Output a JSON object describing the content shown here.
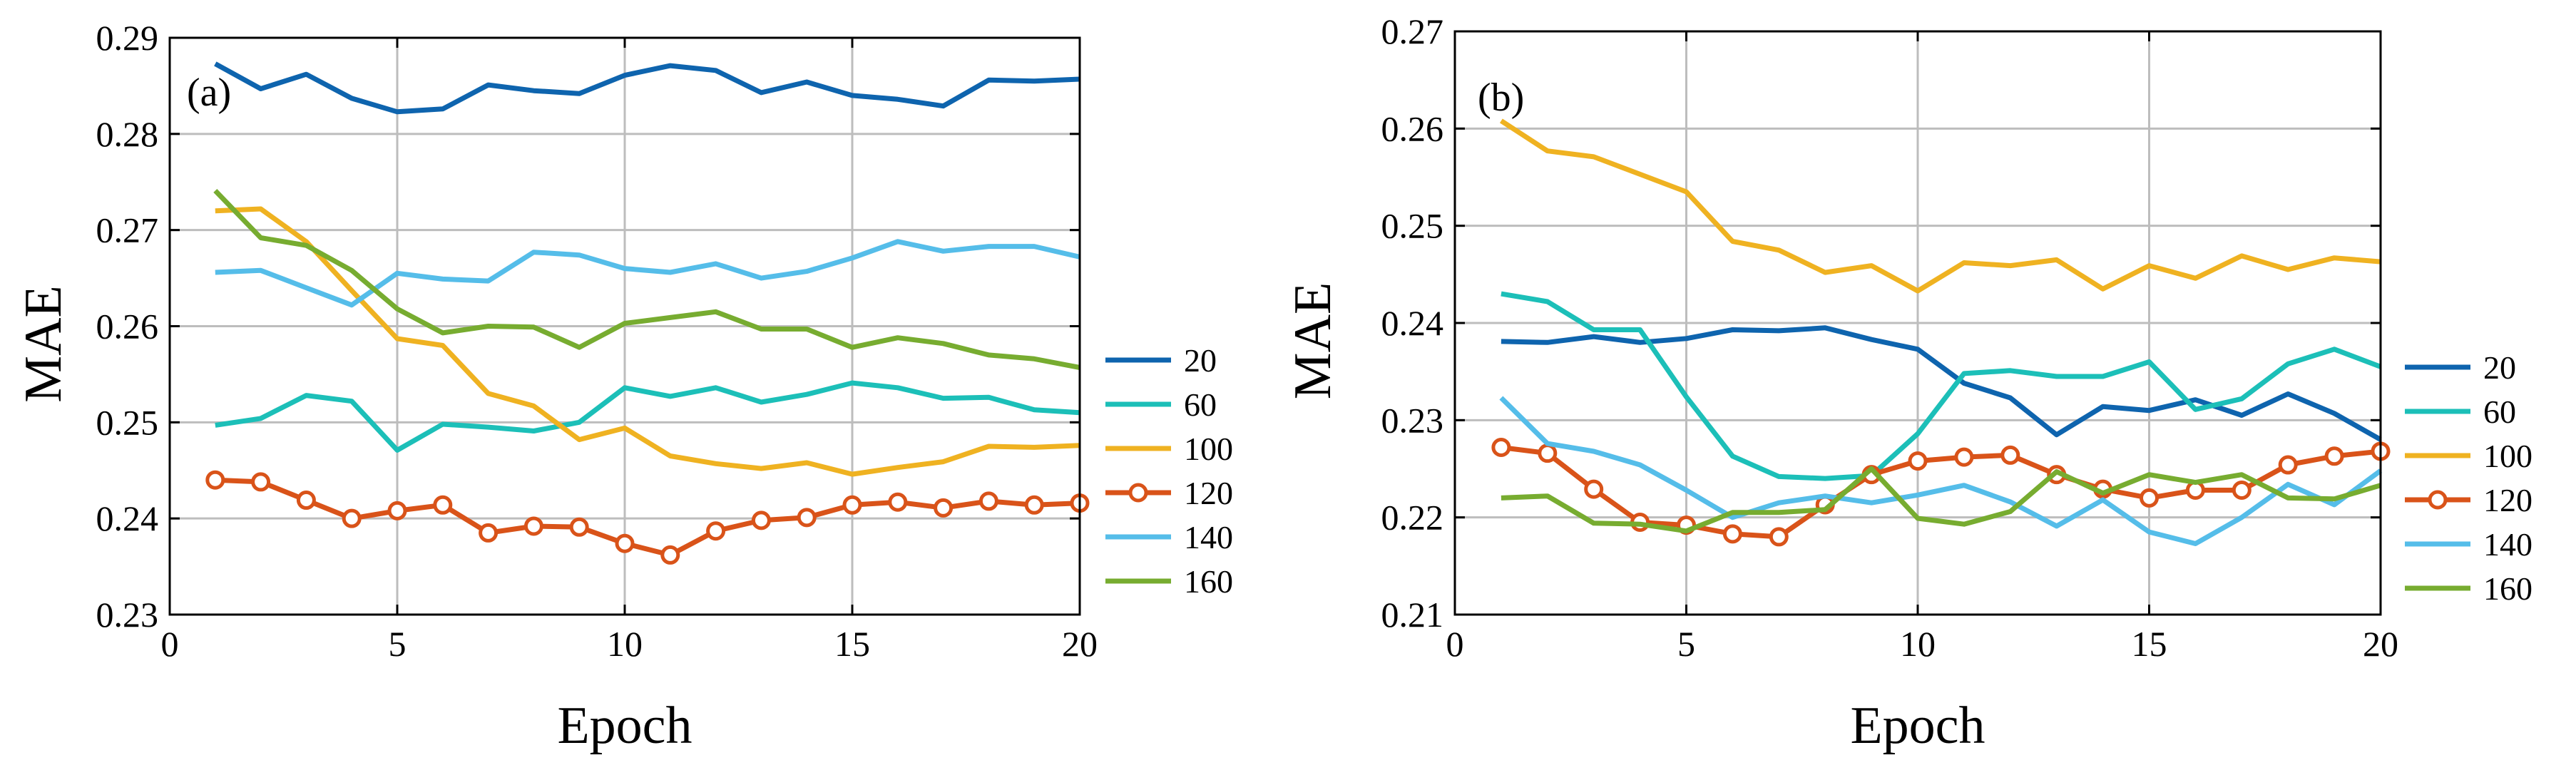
{
  "chart_data": [
    {
      "type": "line",
      "panel_label": "(a)",
      "xlabel": "Epoch",
      "ylabel": "MAE",
      "xlim": [
        0,
        20
      ],
      "ylim": [
        0.23,
        0.29
      ],
      "xticks": [
        0,
        5,
        10,
        15,
        20
      ],
      "xtick_labels": [
        "0",
        "5",
        "10",
        "15",
        "20"
      ],
      "yticks": [
        0.23,
        0.24,
        0.25,
        0.26,
        0.27,
        0.28,
        0.29
      ],
      "ytick_labels": [
        "0.23",
        "0.24",
        "0.25",
        "0.26",
        "0.27",
        "0.28",
        "0.29"
      ],
      "grid": true,
      "legend_position": "outside-right",
      "x": [
        1,
        2,
        3,
        4,
        5,
        6,
        7,
        8,
        9,
        10,
        11,
        12,
        13,
        14,
        15,
        16,
        17,
        18,
        19,
        20
      ],
      "series": [
        {
          "name": "20",
          "color": "#0e64ae",
          "marker": false,
          "values": [
            0.2873,
            0.2847,
            0.2862,
            0.2837,
            0.2823,
            0.2826,
            0.2851,
            0.2845,
            0.2842,
            0.2861,
            0.2871,
            0.2866,
            0.2843,
            0.2854,
            0.284,
            0.2836,
            0.2829,
            0.2856,
            0.2855,
            0.2857
          ]
        },
        {
          "name": "60",
          "color": "#1cbfb8",
          "marker": false,
          "values": [
            0.2497,
            0.2504,
            0.2528,
            0.2522,
            0.2471,
            0.2498,
            0.2495,
            0.2491,
            0.25,
            0.2536,
            0.2527,
            0.2536,
            0.2521,
            0.2529,
            0.2541,
            0.2536,
            0.2525,
            0.2526,
            0.2513,
            0.251
          ]
        },
        {
          "name": "100",
          "color": "#efb221",
          "marker": false,
          "values": [
            0.272,
            0.2722,
            0.2688,
            0.2637,
            0.2587,
            0.258,
            0.253,
            0.2517,
            0.2482,
            0.2494,
            0.2465,
            0.2457,
            0.2452,
            0.2458,
            0.2446,
            0.2453,
            0.2459,
            0.2475,
            0.2474,
            0.2476
          ]
        },
        {
          "name": "120",
          "color": "#d95319",
          "marker": true,
          "values": [
            0.244,
            0.2438,
            0.2419,
            0.24,
            0.2408,
            0.2414,
            0.2385,
            0.2392,
            0.2391,
            0.2374,
            0.2362,
            0.2387,
            0.2398,
            0.2401,
            0.2414,
            0.2417,
            0.2411,
            0.2418,
            0.2414,
            0.2416
          ]
        },
        {
          "name": "140",
          "color": "#55bde9",
          "marker": false,
          "values": [
            0.2656,
            0.2658,
            0.264,
            0.2622,
            0.2655,
            0.2649,
            0.2647,
            0.2677,
            0.2674,
            0.266,
            0.2656,
            0.2665,
            0.265,
            0.2657,
            0.2671,
            0.2688,
            0.2678,
            0.2683,
            0.2683,
            0.2672
          ]
        },
        {
          "name": "160",
          "color": "#77ac30",
          "marker": false,
          "values": [
            0.2741,
            0.2692,
            0.2684,
            0.2658,
            0.2618,
            0.2593,
            0.26,
            0.2599,
            0.2578,
            0.2603,
            0.2609,
            0.2615,
            0.2597,
            0.2597,
            0.2578,
            0.2588,
            0.2582,
            0.257,
            0.2566,
            0.2557
          ]
        }
      ]
    },
    {
      "type": "line",
      "panel_label": "(b)",
      "xlabel": "Epoch",
      "ylabel": "MAE",
      "xlim": [
        0,
        20
      ],
      "ylim": [
        0.21,
        0.27
      ],
      "xticks": [
        0,
        5,
        10,
        15,
        20
      ],
      "xtick_labels": [
        "0",
        "5",
        "10",
        "15",
        "20"
      ],
      "yticks": [
        0.21,
        0.22,
        0.23,
        0.24,
        0.25,
        0.26,
        0.27
      ],
      "ytick_labels": [
        "0.21",
        "0.22",
        "0.23",
        "0.24",
        "0.25",
        "0.26",
        "0.27"
      ],
      "grid": true,
      "legend_position": "outside-right",
      "x": [
        1,
        2,
        3,
        4,
        5,
        6,
        7,
        8,
        9,
        10,
        11,
        12,
        13,
        14,
        15,
        16,
        17,
        18,
        19,
        20
      ],
      "series": [
        {
          "name": "20",
          "color": "#0e64ae",
          "marker": false,
          "values": [
            0.2381,
            0.238,
            0.2386,
            0.238,
            0.2384,
            0.2393,
            0.2392,
            0.2395,
            0.2383,
            0.2373,
            0.2338,
            0.2323,
            0.2285,
            0.2314,
            0.231,
            0.2321,
            0.2305,
            0.2327,
            0.2307,
            0.228
          ]
        },
        {
          "name": "60",
          "color": "#1cbfb8",
          "marker": false,
          "values": [
            0.243,
            0.2422,
            0.2393,
            0.2393,
            0.2324,
            0.2263,
            0.2242,
            0.224,
            0.2243,
            0.2286,
            0.2348,
            0.2351,
            0.2345,
            0.2345,
            0.236,
            0.2311,
            0.2322,
            0.2358,
            0.2373,
            0.2355
          ]
        },
        {
          "name": "100",
          "color": "#efb221",
          "marker": false,
          "values": [
            0.2608,
            0.2577,
            0.2571,
            0.2553,
            0.2535,
            0.2484,
            0.2475,
            0.2452,
            0.2459,
            0.2433,
            0.2462,
            0.2459,
            0.2465,
            0.2435,
            0.2459,
            0.2446,
            0.2469,
            0.2455,
            0.2467,
            0.2463
          ]
        },
        {
          "name": "120",
          "color": "#d95319",
          "marker": true,
          "values": [
            0.2272,
            0.2266,
            0.2229,
            0.2195,
            0.2192,
            0.2183,
            0.218,
            0.2213,
            0.2244,
            0.2258,
            0.2262,
            0.2264,
            0.2244,
            0.2229,
            0.222,
            0.2228,
            0.2228,
            0.2254,
            0.2263,
            0.2268
          ]
        },
        {
          "name": "140",
          "color": "#55bde9",
          "marker": false,
          "values": [
            0.2323,
            0.2276,
            0.2268,
            0.2254,
            0.2228,
            0.22,
            0.2215,
            0.2222,
            0.2215,
            0.2223,
            0.2233,
            0.2216,
            0.2191,
            0.2218,
            0.2185,
            0.2173,
            0.22,
            0.2234,
            0.2213,
            0.2248
          ]
        },
        {
          "name": "160",
          "color": "#77ac30",
          "marker": false,
          "values": [
            0.222,
            0.2222,
            0.2194,
            0.2193,
            0.2186,
            0.2205,
            0.2205,
            0.2208,
            0.225,
            0.2199,
            0.2193,
            0.2206,
            0.2247,
            0.2225,
            0.2244,
            0.2236,
            0.2244,
            0.222,
            0.2219,
            0.2233
          ]
        }
      ]
    }
  ]
}
